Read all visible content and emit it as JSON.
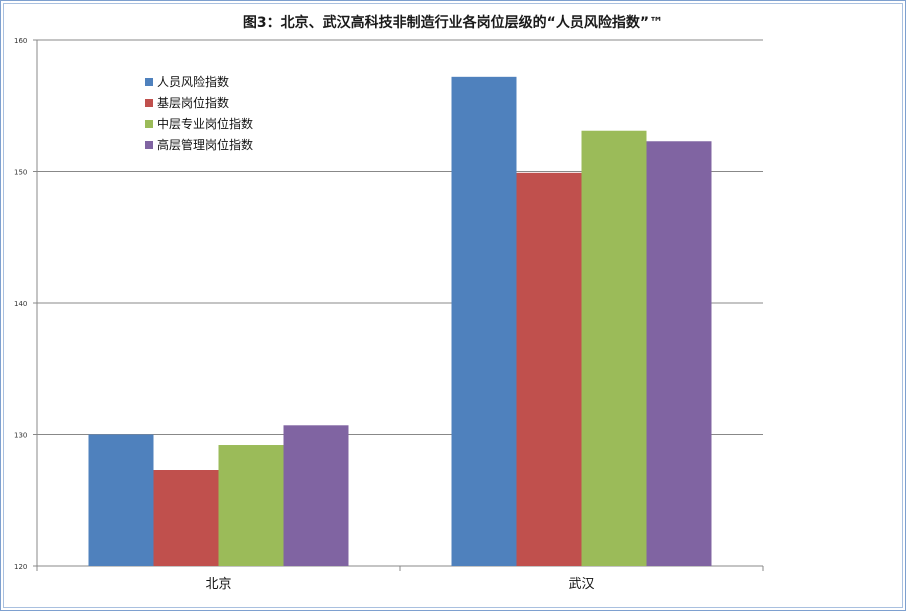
{
  "chart_data": {
    "type": "bar",
    "title": "图3：北京、武汉高科技非制造行业各岗位层级的“人员风险指数”™",
    "categories": [
      "北京",
      "武汉"
    ],
    "series": [
      {
        "name": "人员风险指数",
        "values": [
          130.0,
          157.2
        ],
        "color": "#4f81bd"
      },
      {
        "name": "基层岗位指数",
        "values": [
          127.3,
          149.9
        ],
        "color": "#c0504d"
      },
      {
        "name": "中层专业岗位指数",
        "values": [
          129.2,
          153.1
        ],
        "color": "#9bbb59"
      },
      {
        "name": "高层管理岗位指数",
        "values": [
          130.7,
          152.3
        ],
        "color": "#8064a2"
      }
    ],
    "yticks": [
      "120",
      "130",
      "140",
      "150",
      "160"
    ],
    "ylim": [
      120,
      160
    ],
    "grid": true,
    "legend": "top-left",
    "xlabel": "",
    "ylabel": ""
  }
}
